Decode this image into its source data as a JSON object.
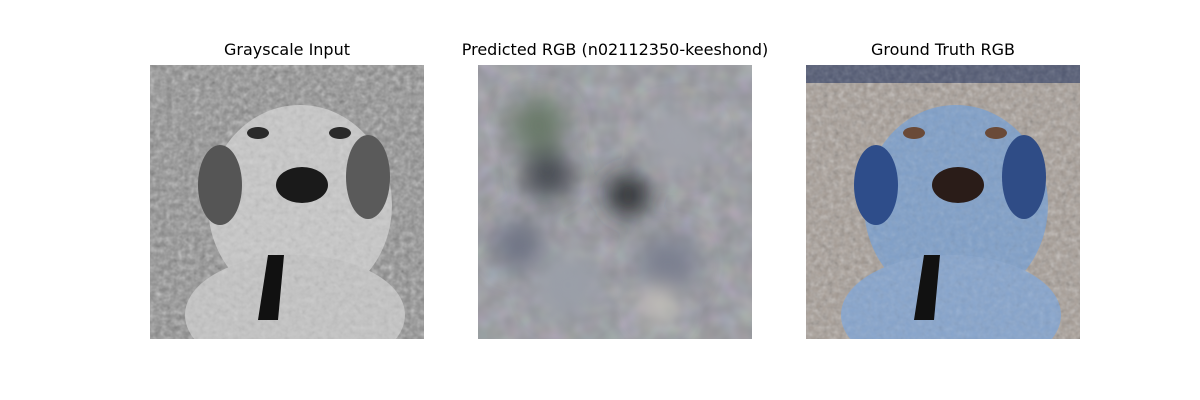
{
  "panels": [
    {
      "title": "Grayscale Input",
      "variant": "gray"
    },
    {
      "title": "Predicted RGB (n02112350-keeshond)",
      "variant": "predicted"
    },
    {
      "title": "Ground Truth RGB",
      "variant": "truth"
    }
  ],
  "colors": {
    "background": "#ffffff",
    "text": "#000000",
    "gray_bg": "#8a8a8a",
    "predicted_bg": "#8e8f94",
    "truth_bg": "#a49a92",
    "truth_dog": "#7f9fc8"
  }
}
